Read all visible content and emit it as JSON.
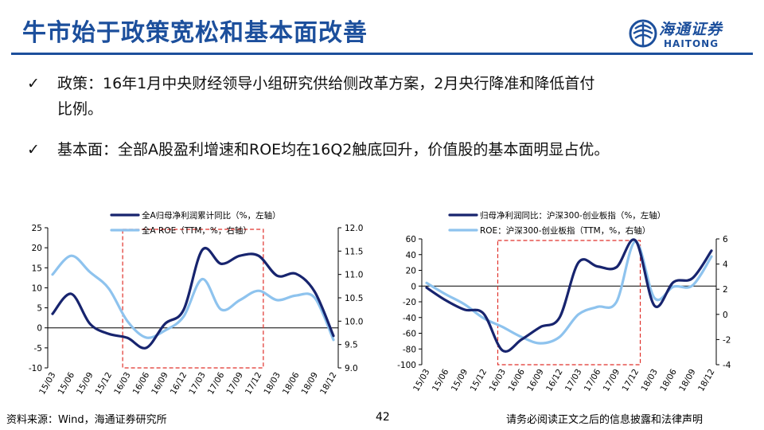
{
  "slide": {
    "title": "牛市始于政策宽松和基本面改善",
    "logo": {
      "cn": "海通证券",
      "en": "HAITONG"
    },
    "bullets": [
      {
        "check": "✓",
        "line1": "政策：16年1月中央财经领导小组研究供给侧改革方案，2月央行降准和降低首付",
        "line2": "比例。"
      },
      {
        "check": "✓",
        "line1": "基本面：全部A股盈利增速和ROE均在16Q2触底回升，价值股的基本面明显占优。"
      }
    ],
    "footer": {
      "source": "资料来源：Wind，海通证券研究所",
      "page": "42",
      "disclaimer": "请务必阅读正文之后的信息披露和法律声明"
    }
  },
  "colors": {
    "title": "#1c4f9c",
    "dark_series": "#17246e",
    "light_series": "#8ec3ee",
    "highlight_box": "#e0302a"
  },
  "chart_data": [
    {
      "type": "line",
      "categories": [
        "15/03",
        "15/06",
        "15/09",
        "15/12",
        "16/03",
        "16/06",
        "16/09",
        "16/12",
        "17/03",
        "17/06",
        "17/09",
        "17/12",
        "18/03",
        "18/06",
        "18/09",
        "18/12"
      ],
      "y_left": {
        "lim": [
          -10,
          25
        ],
        "ticks": [
          "25",
          "20",
          "15",
          "10",
          "5",
          "0",
          "-5",
          "-10"
        ]
      },
      "y_right": {
        "lim": [
          9.0,
          12.0
        ],
        "ticks": [
          "12.0",
          "11.5",
          "11.0",
          "10.5",
          "10.0",
          "9.5",
          "9.0"
        ]
      },
      "highlight_box": {
        "from": "16/03",
        "to": "17/12"
      },
      "legend_position": "top",
      "series": [
        {
          "name": "全A归母净利润累计同比（%，左轴）",
          "axis": "left",
          "color": "#17246e",
          "values": [
            3.5,
            8.5,
            1.0,
            -1.5,
            -2.5,
            -5.0,
            1.0,
            4.5,
            19.5,
            16.0,
            18.0,
            18.0,
            13.0,
            13.5,
            9.0,
            -2.0
          ]
        },
        {
          "name": "全A ROE（TTM，%，右轴）",
          "axis": "right",
          "color": "#8ec3ee",
          "values": [
            11.0,
            11.4,
            11.05,
            10.7,
            10.0,
            9.65,
            9.8,
            10.1,
            10.9,
            10.25,
            10.45,
            10.65,
            10.45,
            10.55,
            10.5,
            9.6
          ]
        }
      ]
    },
    {
      "type": "line",
      "categories": [
        "15/03",
        "15/06",
        "15/09",
        "15/12",
        "16/03",
        "16/06",
        "16/09",
        "16/12",
        "17/03",
        "17/06",
        "17/09",
        "17/12",
        "18/03",
        "18/06",
        "18/09",
        "18/12"
      ],
      "y_left": {
        "lim": [
          -100,
          60
        ],
        "ticks": [
          "60",
          "40",
          "20",
          "0",
          "-20",
          "-40",
          "-60",
          "-80",
          "-100"
        ]
      },
      "y_right": {
        "lim": [
          -4,
          6
        ],
        "ticks": [
          "6",
          "4",
          "2",
          "0",
          "-2",
          "-4"
        ]
      },
      "highlight_box": {
        "from": "16/03",
        "to": "17/12"
      },
      "legend_position": "top",
      "series": [
        {
          "name": "归母净利润同比：沪深300-创业板指（%，左轴）",
          "axis": "left",
          "color": "#17246e",
          "values": [
            -2,
            -18,
            -30,
            -35,
            -82,
            -68,
            -52,
            -40,
            30,
            25,
            24,
            58,
            -25,
            5,
            10,
            45
          ]
        },
        {
          "name": "ROE：沪深300-创业板指（TTM，%，右轴）",
          "axis": "right",
          "color": "#8ec3ee",
          "values": [
            2.5,
            1.6,
            0.8,
            -0.3,
            -1.0,
            -1.8,
            -2.3,
            -1.8,
            0.0,
            0.6,
            1.0,
            5.8,
            1.3,
            2.2,
            2.3,
            4.6
          ]
        }
      ]
    }
  ]
}
